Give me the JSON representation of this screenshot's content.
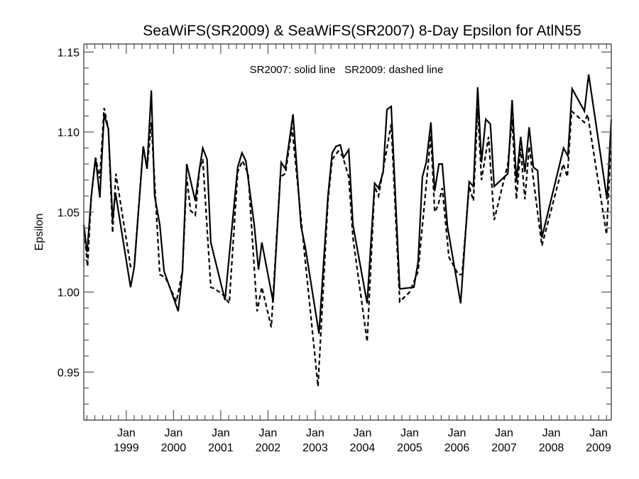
{
  "chart_data": {
    "type": "line",
    "title": "SeaWiFS(SR2009) & SeaWiFS(SR2007) 8-Day Epsilon for AtlN55",
    "annotation": "SR2007: solid line   SR2009: dashed line",
    "xlabel": "",
    "ylabel": "Epsilon",
    "xlim": [
      1998.1,
      2009.27
    ],
    "ylim": [
      0.92,
      1.155
    ],
    "grid": false,
    "y_ticks": [
      0.95,
      1.0,
      1.05,
      1.1,
      1.15
    ],
    "y_tick_labels": [
      "0.95",
      "1.00",
      "1.05",
      "1.10",
      "1.15"
    ],
    "y_minor_step": 0.01,
    "x_ticks": [
      1999,
      2000,
      2001,
      2002,
      2003,
      2004,
      2005,
      2006,
      2007,
      2008,
      2009
    ],
    "x_tick_labels": [
      [
        "Jan",
        "1999"
      ],
      [
        "Jan",
        "2000"
      ],
      [
        "Jan",
        "2001"
      ],
      [
        "Jan",
        "2002"
      ],
      [
        "Jan",
        "2003"
      ],
      [
        "Jan",
        "2004"
      ],
      [
        "Jan",
        "2005"
      ],
      [
        "Jan",
        "2006"
      ],
      [
        "Jan",
        "2007"
      ],
      [
        "Jan",
        "2008"
      ],
      [
        "Jan",
        "2009"
      ]
    ],
    "x_minor_step_years": 0.1667,
    "series": [
      {
        "name": "SR2007",
        "style": "solid",
        "color": "#000000",
        "x": [
          1998.1,
          1998.17,
          1998.26,
          1998.35,
          1998.44,
          1998.53,
          1998.62,
          1998.71,
          1998.77,
          1999.09,
          1999.17,
          1999.36,
          1999.44,
          1999.53,
          1999.6,
          1999.71,
          1999.8,
          2000.1,
          2000.19,
          2000.28,
          2000.46,
          2000.55,
          2000.62,
          2000.71,
          2000.79,
          2001.09,
          2001.36,
          2001.45,
          2001.53,
          2001.71,
          2001.8,
          2001.87,
          2002.11,
          2002.28,
          2002.37,
          2002.53,
          2002.7,
          2002.79,
          2003.08,
          2003.27,
          2003.36,
          2003.44,
          2003.53,
          2003.6,
          2003.71,
          2003.8,
          2004.1,
          2004.26,
          2004.34,
          2004.44,
          2004.52,
          2004.61,
          2004.79,
          2005.09,
          2005.18,
          2005.27,
          2005.35,
          2005.45,
          2005.53,
          2005.62,
          2005.69,
          2005.8,
          2006.08,
          2006.26,
          2006.35,
          2006.44,
          2006.52,
          2006.61,
          2006.71,
          2006.79,
          2007.08,
          2007.17,
          2007.26,
          2007.35,
          2007.44,
          2007.53,
          2007.62,
          2007.71,
          2007.8,
          2008.26,
          2008.35,
          2008.44,
          2008.7,
          2008.79,
          2009.18,
          2009.27
        ],
        "y": [
          1.042,
          1.025,
          1.06,
          1.084,
          1.059,
          1.111,
          1.102,
          1.045,
          1.062,
          1.003,
          1.016,
          1.091,
          1.077,
          1.126,
          1.06,
          1.042,
          1.013,
          0.988,
          1.013,
          1.08,
          1.057,
          1.077,
          1.09,
          1.083,
          1.031,
          0.995,
          1.078,
          1.087,
          1.082,
          1.042,
          1.014,
          1.031,
          0.994,
          1.081,
          1.077,
          1.111,
          1.041,
          1.028,
          0.974,
          1.06,
          1.087,
          1.091,
          1.092,
          1.084,
          1.089,
          1.042,
          0.993,
          1.068,
          1.065,
          1.075,
          1.114,
          1.116,
          1.002,
          1.003,
          1.019,
          1.072,
          1.081,
          1.106,
          1.063,
          1.08,
          1.08,
          1.041,
          0.993,
          1.069,
          1.066,
          1.128,
          1.081,
          1.108,
          1.105,
          1.066,
          1.074,
          1.12,
          1.069,
          1.097,
          1.075,
          1.103,
          1.078,
          1.076,
          1.034,
          1.09,
          1.085,
          1.127,
          1.113,
          1.136,
          1.058,
          1.108
        ]
      },
      {
        "name": "SR2009",
        "style": "dashed",
        "color": "#000000",
        "x": [
          1998.1,
          1998.18,
          1998.26,
          1998.35,
          1998.44,
          1998.53,
          1998.62,
          1998.71,
          1998.78,
          1999.09,
          1999.17,
          1999.36,
          1999.44,
          1999.51,
          1999.53,
          1999.71,
          1999.83,
          2000.06,
          2000.19,
          2000.28,
          2000.36,
          2000.46,
          2000.55,
          2000.62,
          2000.79,
          2000.88,
          2001.06,
          2001.18,
          2001.36,
          2001.46,
          2001.58,
          2001.77,
          2001.87,
          2002.07,
          2002.26,
          2002.37,
          2002.51,
          2002.76,
          2003.06,
          2003.27,
          2003.36,
          2003.49,
          2003.58,
          2003.71,
          2003.8,
          2004.1,
          2004.26,
          2004.34,
          2004.61,
          2004.79,
          2005.0,
          2005.18,
          2005.45,
          2005.53,
          2005.6,
          2005.69,
          2005.83,
          2006.03,
          2006.11,
          2006.26,
          2006.35,
          2006.44,
          2006.52,
          2006.67,
          2006.79,
          2007.08,
          2007.17,
          2007.26,
          2007.35,
          2007.44,
          2007.53,
          2007.8,
          2008.25,
          2008.34,
          2008.43,
          2008.7,
          2008.77,
          2009.17,
          2009.26
        ],
        "y": [
          1.042,
          1.016,
          1.06,
          1.084,
          1.071,
          1.115,
          1.102,
          1.037,
          1.074,
          1.016,
          1.017,
          1.091,
          1.077,
          1.099,
          1.106,
          1.011,
          1.009,
          0.994,
          1.013,
          1.072,
          1.051,
          1.048,
          1.077,
          1.083,
          1.003,
          1.002,
          0.998,
          0.993,
          1.075,
          1.082,
          1.074,
          0.988,
          1.003,
          0.978,
          1.072,
          1.074,
          1.103,
          1.028,
          0.941,
          1.057,
          1.083,
          1.088,
          1.085,
          1.072,
          1.034,
          0.969,
          1.066,
          1.06,
          1.105,
          0.994,
          1.0,
          1.013,
          1.098,
          1.05,
          1.054,
          1.065,
          1.022,
          1.011,
          1.011,
          1.066,
          1.057,
          1.115,
          1.07,
          1.097,
          1.045,
          1.08,
          1.108,
          1.058,
          1.09,
          1.058,
          1.091,
          1.029,
          1.08,
          1.072,
          1.113,
          1.106,
          1.111,
          1.036,
          1.091
        ]
      }
    ]
  }
}
